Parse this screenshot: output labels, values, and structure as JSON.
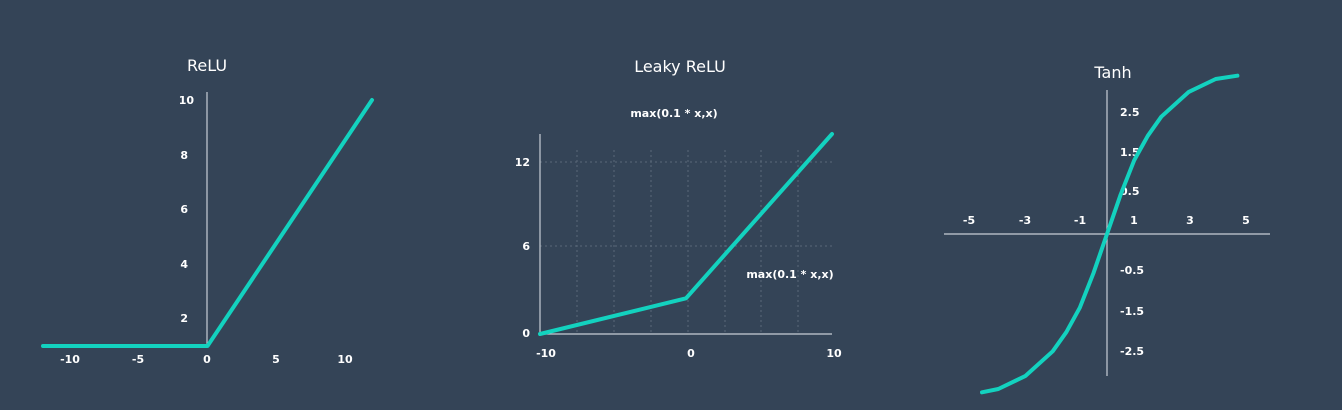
{
  "colors": {
    "background": "#344457",
    "line": "#13d2bf",
    "axis": "#c8ced6",
    "text": "#ffffff"
  },
  "chart_data": [
    {
      "type": "line",
      "title": "ReLU",
      "x_ticks": [
        "-10",
        "-5",
        "0",
        "5",
        "10"
      ],
      "y_ticks": [
        "2",
        "4",
        "6",
        "8",
        "10"
      ],
      "xlim": [
        -12,
        12
      ],
      "ylim": [
        0,
        10
      ],
      "grid": false,
      "series": [
        {
          "x": [
            -12,
            0,
            12
          ],
          "y": [
            0,
            0,
            10
          ]
        }
      ]
    },
    {
      "type": "line",
      "title": "Leaky ReLU",
      "annotations": [
        "max(0.1 * x,x)",
        "max(0.1 * x,x)"
      ],
      "x_ticks": [
        "-10",
        "0",
        "10"
      ],
      "y_ticks": [
        "0",
        "6",
        "12"
      ],
      "xlim": [
        -10,
        10
      ],
      "ylim": [
        0,
        14
      ],
      "grid": true,
      "series": [
        {
          "x": [
            -10,
            0,
            10
          ],
          "y": [
            0,
            2.5,
            14
          ]
        }
      ]
    },
    {
      "type": "line",
      "title": "Tanh",
      "x_ticks": [
        "-5",
        "-3",
        "-1",
        "1",
        "3",
        "5"
      ],
      "y_ticks": [
        "2.5",
        "1.5",
        "0.5",
        "-0.5",
        "-1.5",
        "-2.5"
      ],
      "xlim": [
        -6,
        6
      ],
      "ylim": [
        -3.5,
        3.5
      ],
      "grid": false,
      "series": [
        {
          "x": [
            -4.6,
            -4,
            -3,
            -2,
            -1.5,
            -1,
            -0.5,
            0,
            0.5,
            1,
            1.5,
            2,
            3,
            4,
            4.8
          ],
          "y": [
            -2.9,
            -2.84,
            -2.6,
            -2.15,
            -1.8,
            -1.35,
            -0.72,
            0,
            0.72,
            1.35,
            1.8,
            2.15,
            2.6,
            2.84,
            2.9
          ]
        }
      ]
    }
  ]
}
